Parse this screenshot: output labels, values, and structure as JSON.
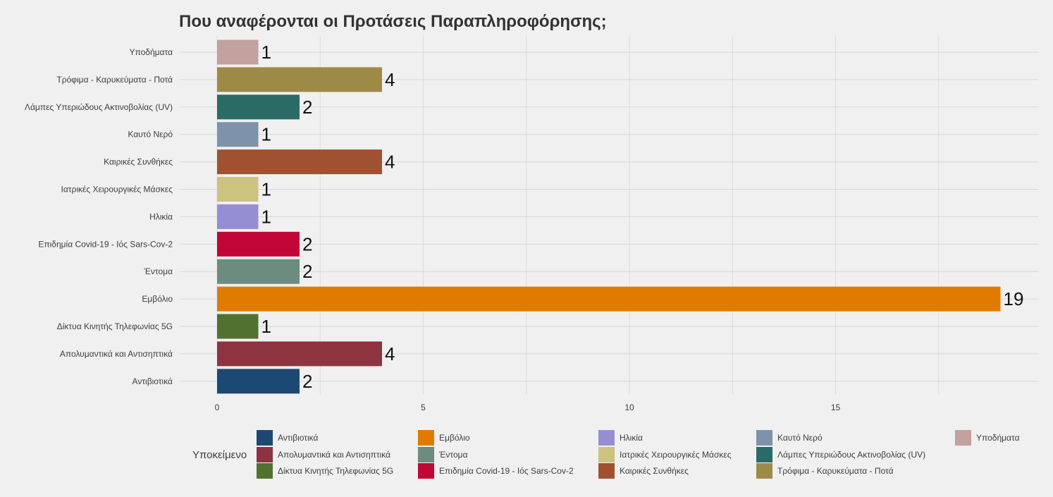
{
  "chart_data": {
    "type": "bar",
    "orientation": "horizontal",
    "title": "Που αναφέρονται οι Προτάσεις Παραπληροφόρησης;",
    "xlabel": "",
    "ylabel": "",
    "xlim": [
      0,
      19.5
    ],
    "x_ticks": [
      0,
      5,
      10,
      15
    ],
    "grid": true,
    "legend_title": "Υποκείμενο",
    "legend_position": "bottom",
    "categories": [
      "Αντιβιοτικά",
      "Απολυμαντικά και Αντισηπτικά",
      "Δίκτυα Κινητής Τηλεφωνίας 5G",
      "Εμβόλιο",
      "Έντομα",
      "Επιδημία Covid-19 - Ιός Sars-Cov-2",
      "Ηλικία",
      "Ιατρικές Χειρουργικές Μάσκες",
      "Καιρικές Συνθήκες",
      "Καυτό Νερό",
      "Λάμπες Υπεριώδους Ακτινοβολίας (UV)",
      "Τρόφιμα - Καρυκεύματα - Ποτά",
      "Υποδήματα"
    ],
    "values": [
      2,
      4,
      1,
      19,
      2,
      2,
      1,
      1,
      4,
      1,
      2,
      4,
      1
    ],
    "colors": [
      "#1c4973",
      "#8e3440",
      "#51722f",
      "#e07b00",
      "#6c8c7f",
      "#c20635",
      "#968ed3",
      "#cbc37f",
      "#a05230",
      "#7d93ab",
      "#2b6b66",
      "#9e8a47",
      "#c2a19f"
    ]
  }
}
